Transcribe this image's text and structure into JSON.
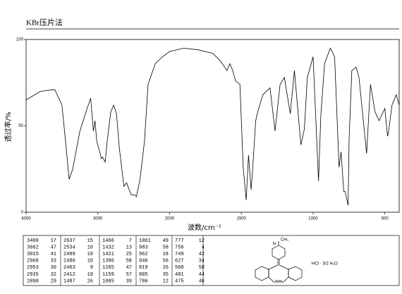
{
  "chart_data": {
    "type": "line",
    "title": "KBr压片法",
    "x_label": "波数/cm⁻¹",
    "y_label": "透过率/%",
    "xlim": [
      4000,
      400
    ],
    "x_scale_break": 2000,
    "xticks": [
      4000,
      3000,
      2000,
      1500,
      1000,
      500
    ],
    "ylim": [
      0,
      100
    ],
    "yticks": [
      0,
      50,
      100
    ],
    "color": "#000000",
    "x": [
      4000,
      3800,
      3600,
      3500,
      3450,
      3400,
      3350,
      3250,
      3150,
      3100,
      3062,
      3040,
      3015,
      2968,
      2953,
      2935,
      2898,
      2870,
      2820,
      2780,
      2740,
      2700,
      2637,
      2600,
      2534,
      2499,
      2486,
      2463,
      2412,
      2350,
      2300,
      2200,
      2100,
      2000,
      1900,
      1800,
      1700,
      1650,
      1600,
      1580,
      1560,
      1540,
      1510,
      1487,
      1466,
      1450,
      1432,
      1421,
      1400,
      1386,
      1350,
      1300,
      1265,
      1230,
      1200,
      1159,
      1130,
      1085,
      1061,
      1040,
      1000,
      983,
      962,
      946,
      920,
      880,
      850,
      819,
      805,
      786,
      777,
      756,
      749,
      730,
      700,
      680,
      627,
      600,
      568,
      540,
      500,
      481,
      475,
      450,
      420,
      400
    ],
    "values": [
      65,
      70,
      71,
      62,
      41,
      19,
      25,
      47,
      60,
      66,
      47,
      53,
      41,
      34,
      31,
      32,
      29,
      41,
      58,
      62,
      57,
      37,
      15,
      17,
      10,
      10,
      10,
      9,
      19,
      41,
      74,
      86,
      90,
      93,
      95,
      94,
      92,
      88,
      82,
      86,
      82,
      76,
      74,
      26,
      7,
      33,
      13,
      25,
      53,
      58,
      68,
      72,
      47,
      74,
      78,
      57,
      82,
      39,
      48,
      78,
      90,
      58,
      18,
      56,
      86,
      95,
      90,
      26,
      35,
      12,
      12,
      4,
      42,
      82,
      84,
      78,
      34,
      74,
      58,
      53,
      60,
      44,
      46,
      62,
      68,
      62
    ]
  },
  "peak_table": {
    "columns": [
      [
        [
          "3408",
          "17"
        ],
        [
          "3062",
          "47"
        ],
        [
          "3015",
          "41"
        ],
        [
          "2968",
          "33"
        ],
        [
          "2953",
          "30"
        ],
        [
          "2935",
          "32"
        ],
        [
          "2898",
          "29"
        ]
      ],
      [
        [
          "2637",
          "15"
        ],
        [
          "2534",
          "10"
        ],
        [
          "2499",
          "10"
        ],
        [
          "2486",
          "10"
        ],
        [
          "2463",
          "9"
        ],
        [
          "2412",
          "19"
        ],
        [
          "1487",
          "26"
        ]
      ],
      [
        [
          "1466",
          "7"
        ],
        [
          "1432",
          "13"
        ],
        [
          "1421",
          "25"
        ],
        [
          "1386",
          "58"
        ],
        [
          "1265",
          "47"
        ],
        [
          "1159",
          "57"
        ],
        [
          "1085",
          "39"
        ]
      ],
      [
        [
          "1061",
          "49"
        ],
        [
          "983",
          "58"
        ],
        [
          "962",
          "18"
        ],
        [
          "946",
          "56"
        ],
        [
          "819",
          "26"
        ],
        [
          "805",
          "35"
        ],
        [
          "786",
          "12"
        ]
      ],
      [
        [
          "777",
          "12"
        ],
        [
          "756",
          "4"
        ],
        [
          "749",
          "42"
        ],
        [
          "627",
          "34"
        ],
        [
          "568",
          "58"
        ],
        [
          "481",
          "44"
        ],
        [
          "475",
          "46"
        ]
      ]
    ]
  },
  "structure": {
    "substituent": "CH₃",
    "salt": "·HCl · 3/2 H₂O"
  }
}
